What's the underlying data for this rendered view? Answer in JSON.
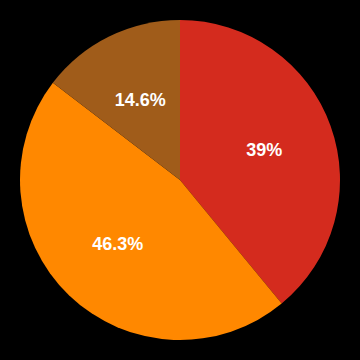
{
  "chart_data": {
    "type": "pie",
    "values": [
      39.0,
      46.3,
      14.6
    ],
    "value_labels": [
      "39%",
      "46.3%",
      "14.6%"
    ],
    "data_labels": true,
    "colors": [
      "#d42b1e",
      "#ff8800",
      "#a05c1a"
    ]
  }
}
